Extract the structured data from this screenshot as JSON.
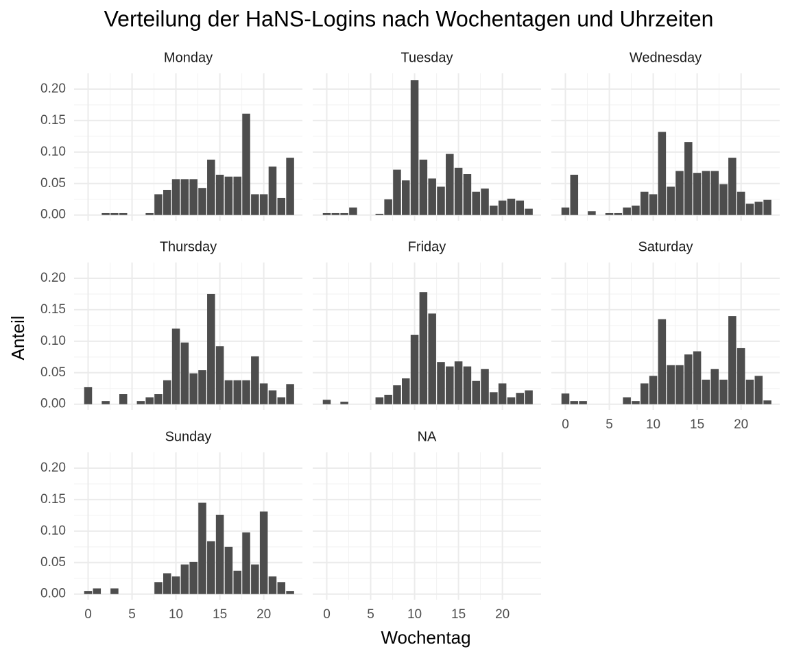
{
  "chart_data": {
    "type": "bar",
    "title": "Verteilung der HaNS-Logins nach Wochentagen und Uhrzeiten",
    "xlabel": "Wochentag",
    "ylabel": "Anteil",
    "x": [
      0,
      1,
      2,
      3,
      4,
      5,
      6,
      7,
      8,
      9,
      10,
      11,
      12,
      13,
      14,
      15,
      16,
      17,
      18,
      19,
      20,
      21,
      22,
      23
    ],
    "xlim": [
      -1.6,
      24.4
    ],
    "xticks": [
      0,
      5,
      10,
      15,
      20
    ],
    "ylim": [
      -0.009,
      0.225
    ],
    "yticks": [
      {
        "value": 0,
        "label": "0.00"
      },
      {
        "value": 0.05,
        "label": "0.05"
      },
      {
        "value": 0.1,
        "label": "0.10"
      },
      {
        "value": 0.15,
        "label": "0.15"
      },
      {
        "value": 0.2,
        "label": "0.20"
      }
    ],
    "grid": true,
    "color": "#4d4d4d",
    "ncol": 3,
    "facets": [
      {
        "name": "Monday",
        "values": [
          0,
          0,
          0.003,
          0.003,
          0.003,
          0,
          0,
          0.003,
          0.033,
          0.04,
          0.057,
          0.057,
          0.057,
          0.043,
          0.088,
          0.064,
          0.061,
          0.061,
          0.161,
          0.033,
          0.033,
          0.077,
          0.027,
          0.091
        ]
      },
      {
        "name": "Tuesday",
        "values": [
          0.003,
          0.003,
          0.003,
          0.012,
          0,
          0,
          0.002,
          0.025,
          0.072,
          0.055,
          0.214,
          0.088,
          0.058,
          0.045,
          0.097,
          0.075,
          0.065,
          0.037,
          0.042,
          0.015,
          0.023,
          0.026,
          0.023,
          0.01
        ]
      },
      {
        "name": "Wednesday",
        "values": [
          0.012,
          0.064,
          0,
          0.006,
          0,
          0.003,
          0.003,
          0.012,
          0.015,
          0.037,
          0.033,
          0.132,
          0.045,
          0.07,
          0.116,
          0.067,
          0.07,
          0.07,
          0.049,
          0.091,
          0.037,
          0.018,
          0.021,
          0.024
        ]
      },
      {
        "name": "Thursday",
        "values": [
          0.027,
          0,
          0.005,
          0,
          0.016,
          0,
          0.005,
          0.011,
          0.016,
          0.038,
          0.12,
          0.098,
          0.049,
          0.054,
          0.175,
          0.092,
          0.038,
          0.038,
          0.038,
          0.076,
          0.033,
          0.022,
          0.011,
          0.032
        ]
      },
      {
        "name": "Friday",
        "values": [
          0.007,
          0,
          0.004,
          0,
          0,
          0,
          0.011,
          0.015,
          0.03,
          0.041,
          0.11,
          0.178,
          0.144,
          0.067,
          0.06,
          0.068,
          0.06,
          0.037,
          0.056,
          0.019,
          0.033,
          0.011,
          0.018,
          0.022
        ]
      },
      {
        "name": "Saturday",
        "values": [
          0.017,
          0.005,
          0.005,
          0,
          0,
          0,
          0,
          0.011,
          0.005,
          0.033,
          0.045,
          0.135,
          0.062,
          0.062,
          0.079,
          0.084,
          0.039,
          0.056,
          0.039,
          0.14,
          0.089,
          0.039,
          0.045,
          0.006
        ]
      },
      {
        "name": "Sunday",
        "values": [
          0.005,
          0.009,
          0,
          0.009,
          0,
          0,
          0,
          0,
          0.019,
          0.033,
          0.028,
          0.047,
          0.051,
          0.145,
          0.084,
          0.126,
          0.075,
          0.037,
          0.098,
          0.047,
          0.131,
          0.028,
          0.019,
          0.005
        ]
      },
      {
        "name": "NA",
        "values": [
          null,
          null,
          null,
          null,
          null,
          null,
          null,
          null,
          null,
          null,
          null,
          null,
          null,
          null,
          null,
          null,
          null,
          null,
          null,
          null,
          null,
          null,
          null,
          null
        ]
      }
    ]
  }
}
